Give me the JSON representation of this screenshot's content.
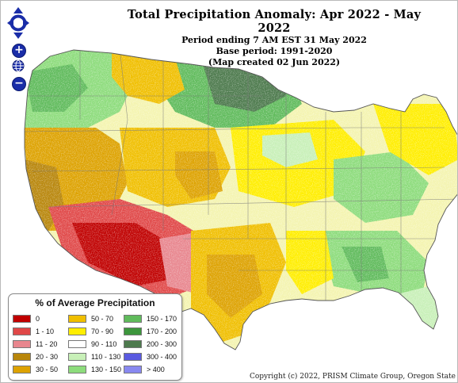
{
  "title": "Total Precipitation Anomaly: Apr 2022 - May 2022",
  "subtitle_period": "Period ending 7 AM EST 31 May 2022",
  "subtitle_base": "Base period: 1991-2020",
  "subtitle_created": "(Map created 02 Jun 2022)",
  "legend": {
    "title": "% of Average Precipitation",
    "entries": [
      {
        "label": "0",
        "color": "#c00000"
      },
      {
        "label": "1 - 10",
        "color": "#e04848"
      },
      {
        "label": "11 - 20",
        "color": "#e8868e"
      },
      {
        "label": "20 - 30",
        "color": "#b8860b"
      },
      {
        "label": "30 - 50",
        "color": "#dda200"
      },
      {
        "label": "50 - 70",
        "color": "#f0bf00"
      },
      {
        "label": "70 - 90",
        "color": "#ffee00"
      },
      {
        "label": "90 - 110",
        "color": "#ffffff"
      },
      {
        "label": "110 - 130",
        "color": "#c8f0b8"
      },
      {
        "label": "130 - 150",
        "color": "#8ddc7c"
      },
      {
        "label": "150 - 170",
        "color": "#60bb5c"
      },
      {
        "label": "170 - 200",
        "color": "#3c963c"
      },
      {
        "label": "200 - 300",
        "color": "#4d7a4d"
      },
      {
        "label": "300 - 400",
        "color": "#5a5ae0"
      },
      {
        "label": "> 400",
        "color": "#8888f0"
      }
    ]
  },
  "controls": {
    "zoom_in": "+",
    "zoom_out": "−"
  },
  "copyright": "Copyright (c) 2022, PRISM Climate Group, Oregon State"
}
